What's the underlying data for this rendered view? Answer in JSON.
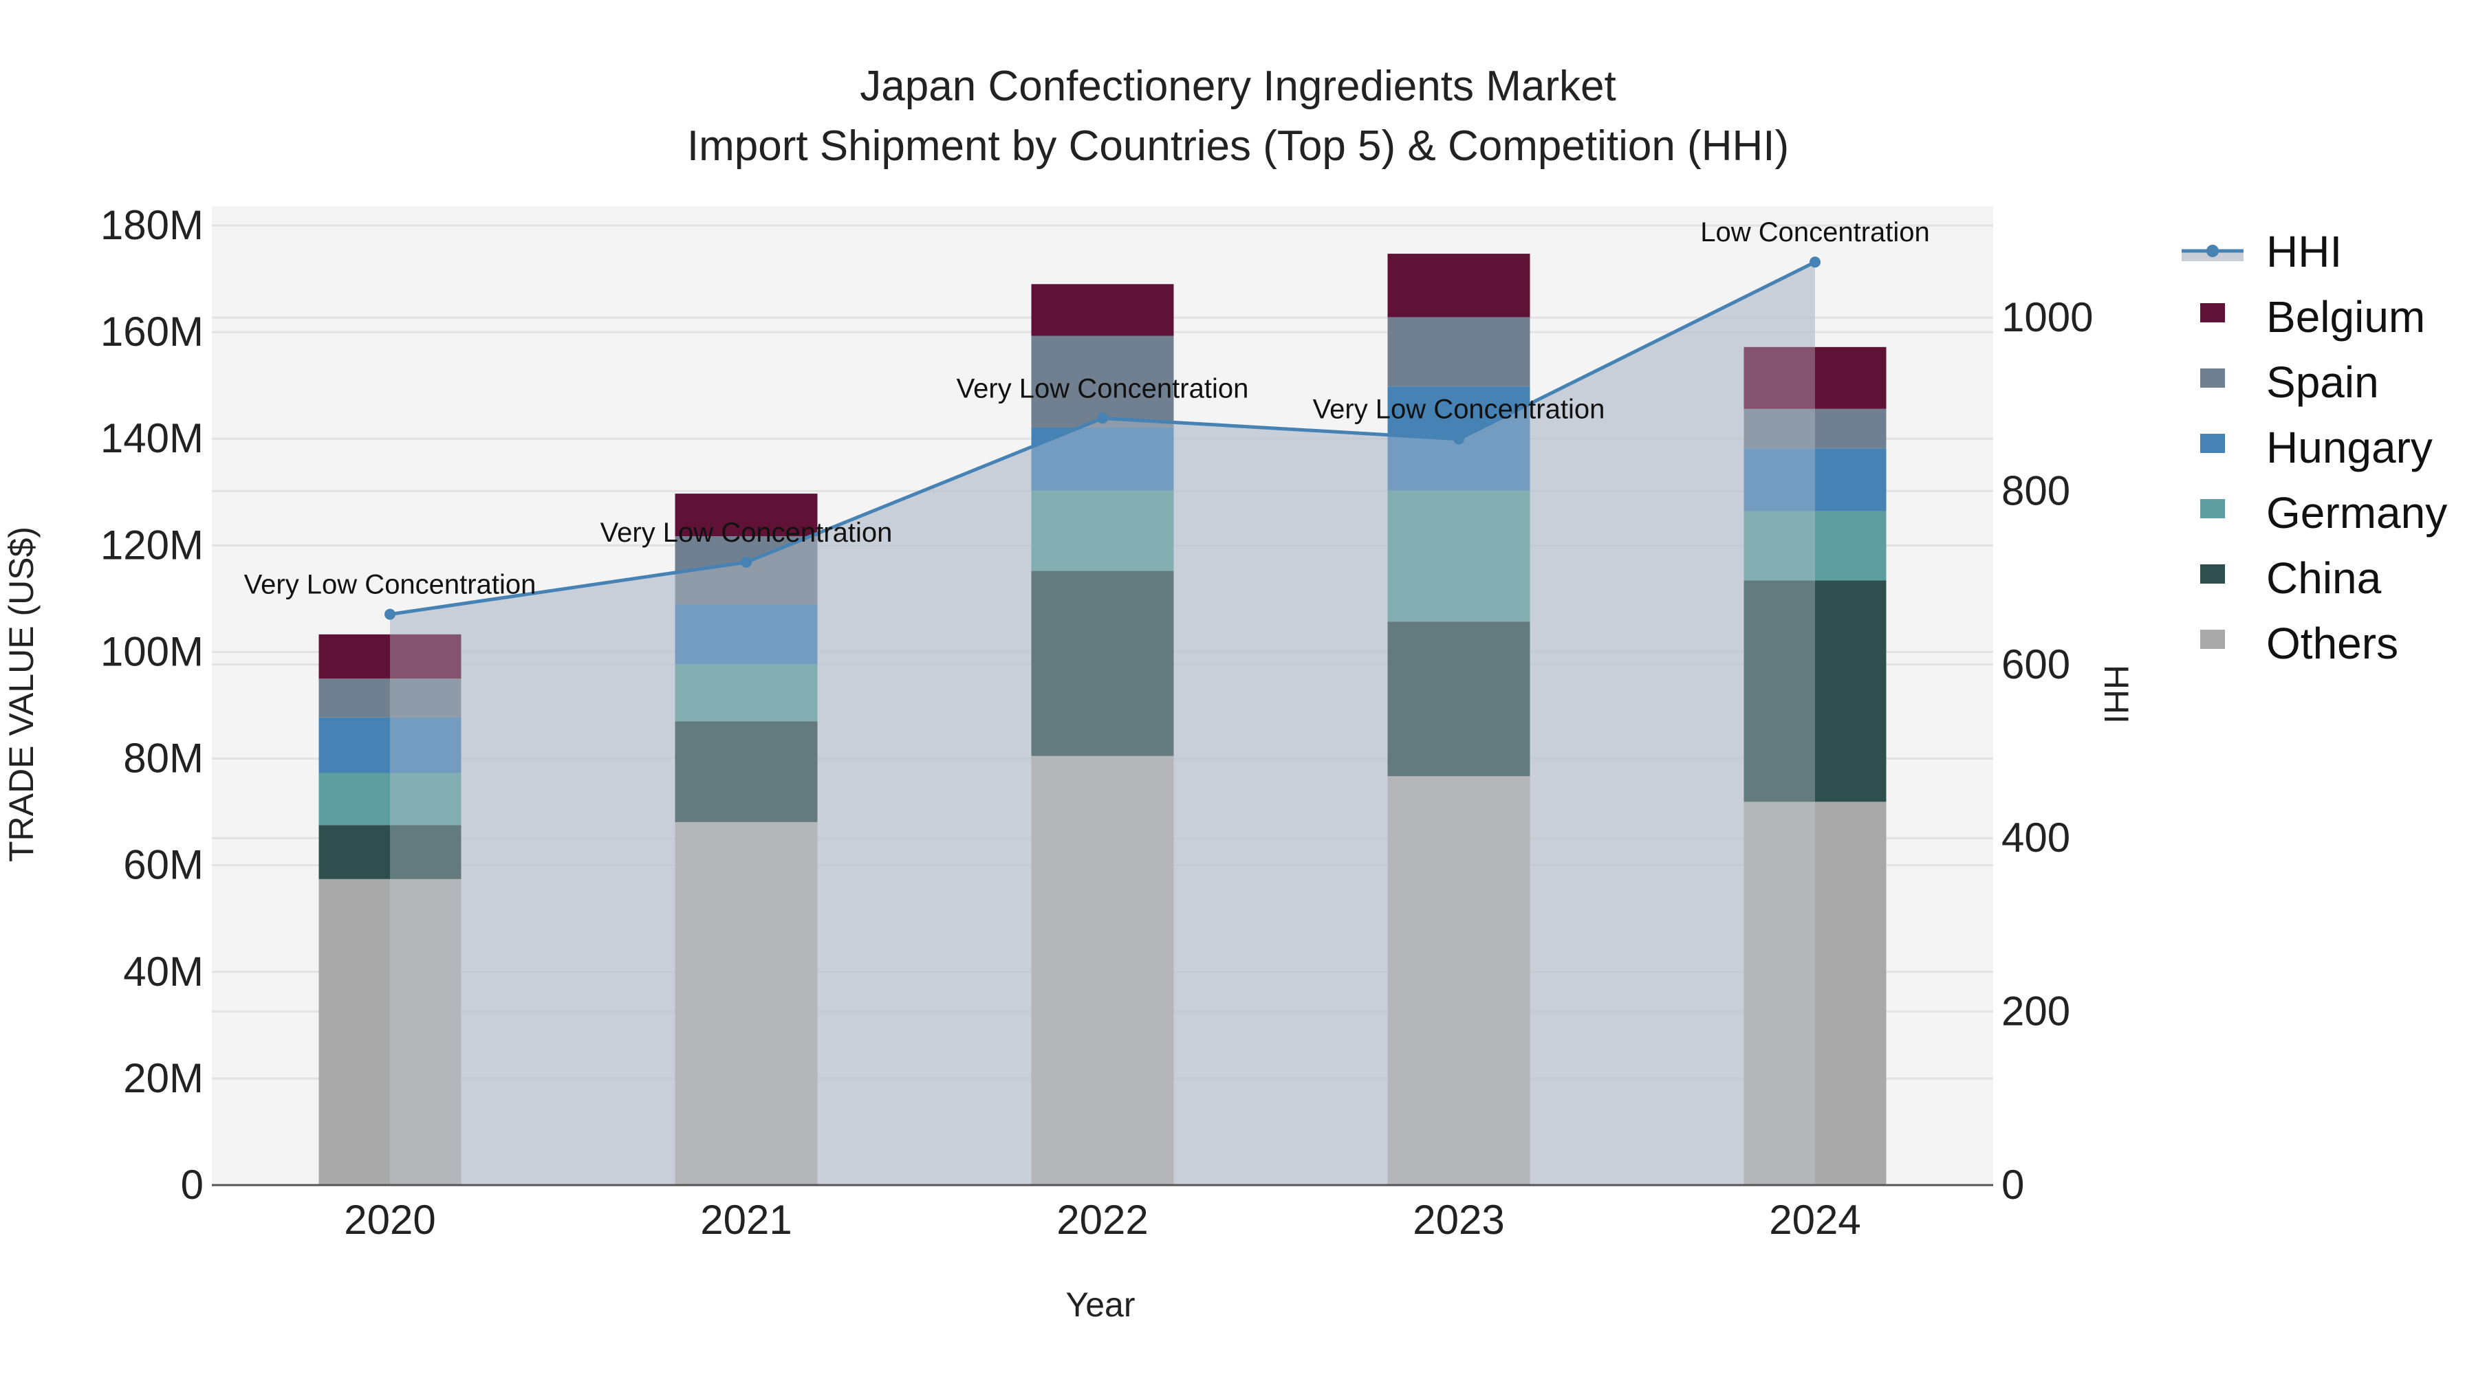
{
  "chart_data": {
    "type": "bar",
    "stacked": true,
    "title": "Japan Confectionery Ingredients Market",
    "subtitle": "Import Shipment by Countries (Top 5) & Competition (HHI)",
    "xlabel": "Year",
    "ylabel": "TRADE VALUE (US$)",
    "y2label": "HHI",
    "categories": [
      "2020",
      "2021",
      "2022",
      "2023",
      "2024"
    ],
    "ylim": [
      0,
      180000000
    ],
    "y_ticks": [
      "0",
      "20M",
      "40M",
      "60M",
      "80M",
      "100M",
      "120M",
      "140M",
      "160M",
      "180M"
    ],
    "y2lim": [
      0,
      1100
    ],
    "y2_ticks": [
      "0",
      "200",
      "400",
      "600",
      "800",
      "1000"
    ],
    "grid": true,
    "legend_position": "right",
    "series": [
      {
        "name": "Others",
        "color": "#A9A9A9",
        "values": [
          57.4,
          68.1,
          80.5,
          76.7,
          71.9
        ]
      },
      {
        "name": "China",
        "color": "#2F4F4F",
        "values": [
          10.1,
          18.9,
          34.7,
          29.0,
          41.5
        ]
      },
      {
        "name": "Germany",
        "color": "#5F9EA0",
        "values": [
          9.8,
          10.7,
          15.1,
          24.6,
          13.0
        ]
      },
      {
        "name": "Hungary",
        "color": "#4682B4",
        "values": [
          10.4,
          11.2,
          11.8,
          19.5,
          11.8
        ]
      },
      {
        "name": "Spain",
        "color": "#708090",
        "values": [
          7.3,
          12.8,
          17.2,
          13.0,
          7.4
        ]
      },
      {
        "name": "Belgium",
        "color": "#601236",
        "values": [
          8.3,
          8.0,
          9.7,
          11.9,
          11.6
        ]
      }
    ],
    "value_unit": "million US$",
    "line_series": {
      "name": "HHI",
      "axis": "y2",
      "color": "#4682B4",
      "fill_color": "#B0B8C8",
      "values": [
        658,
        718,
        884,
        860,
        1064
      ],
      "annotations": [
        "Very Low Concentration",
        "Very Low Concentration",
        "Very Low Concentration",
        "Very Low Concentration",
        "Low Concentration"
      ]
    }
  },
  "legend": {
    "items": [
      {
        "label": "HHI",
        "kind": "line"
      },
      {
        "label": "Belgium",
        "kind": "box",
        "color": "#601236"
      },
      {
        "label": "Spain",
        "kind": "box",
        "color": "#708090"
      },
      {
        "label": "Hungary",
        "kind": "box",
        "color": "#4682B4"
      },
      {
        "label": "Germany",
        "kind": "box",
        "color": "#5F9EA0"
      },
      {
        "label": "China",
        "kind": "box",
        "color": "#2F4F4F"
      },
      {
        "label": "Others",
        "kind": "box",
        "color": "#A9A9A9"
      }
    ]
  },
  "colors": {
    "plot_bg": "#F4F4F4",
    "grid": "#E2E2E2",
    "axis_line": "#555555",
    "line": "#4682B4"
  }
}
